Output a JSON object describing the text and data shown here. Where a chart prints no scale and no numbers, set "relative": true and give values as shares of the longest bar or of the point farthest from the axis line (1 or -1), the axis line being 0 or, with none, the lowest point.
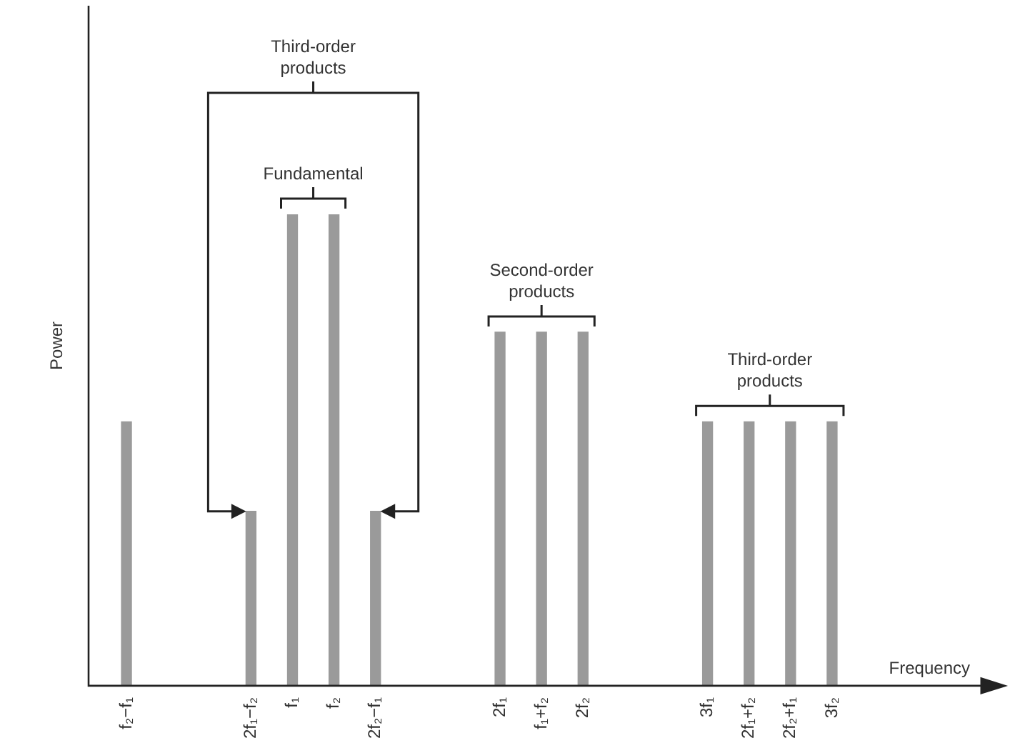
{
  "chart_data": {
    "type": "bar",
    "relative": true,
    "xlabel": "Frequency",
    "ylabel": "Power",
    "categories": [
      "f₂−f₁",
      null,
      null,
      "2f₁−f₂",
      "f₁",
      "f₂",
      "2f₂−f₁",
      null,
      null,
      "2f₁",
      "f₁+f₂",
      "2f₂",
      null,
      null,
      "3f₁",
      "2f₁+f₂",
      "2f₂+f₁",
      "3f₂"
    ],
    "values": [
      0.56,
      null,
      null,
      0.37,
      1,
      1,
      0.37,
      null,
      null,
      0.75,
      0.75,
      0.75,
      null,
      null,
      0.56,
      0.56,
      0.56,
      0.56
    ],
    "color": "#9a9a9a",
    "grid": false,
    "legend": false,
    "annotations": [
      "Third-order products",
      "Fundamental",
      "Second-order products",
      "Third-order products"
    ]
  }
}
